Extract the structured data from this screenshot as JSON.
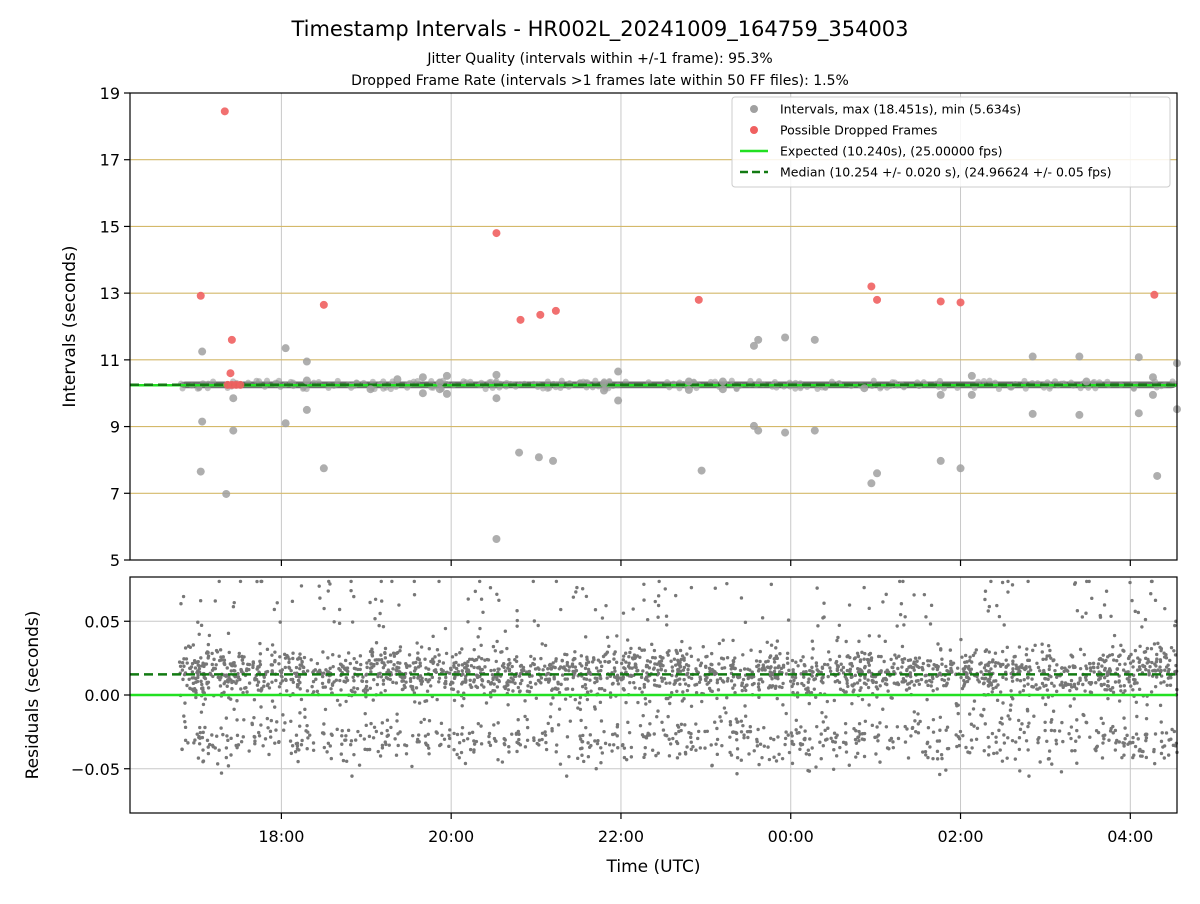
{
  "title": "Timestamp Intervals - HR002L_20241009_164759_354003",
  "subtitle_lines": [
    "Jitter Quality (intervals within +/-1 frame): 95.3%",
    "Dropped Frame Rate (intervals >1 frames late within 50 FF files): 1.5%"
  ],
  "chart_data": [
    {
      "type": "scatter",
      "panel": "top",
      "ylabel": "Intervals (seconds)",
      "xlabel": "",
      "x_unit": "hours UTC (continuous from 09 Oct 00:00; values over 24 wrap to next day)",
      "xlim": [
        "16:13",
        "04:33"
      ],
      "ylim": [
        5,
        19
      ],
      "yticks": [
        "5",
        "7",
        "9",
        "11",
        "13",
        "15",
        "17",
        "19"
      ],
      "y_gridlines": [
        7,
        9,
        11,
        13,
        15,
        17,
        19
      ],
      "y_grid_color": "#d4b96a",
      "x_grid": true,
      "legend_position": "top-right",
      "legend": [
        {
          "label": "Intervals, max (18.451s), min (5.634s)",
          "kind": "marker",
          "color": "#a0a0a0"
        },
        {
          "label": "Possible Dropped Frames",
          "kind": "marker",
          "color": "#f06060"
        },
        {
          "label": "Expected (10.240s), (25.00000 fps)",
          "kind": "line",
          "color": "#22e022"
        },
        {
          "label": "Median (10.254 +/- 0.020 s), (24.96624 +/- 0.05 fps)",
          "kind": "dashed",
          "color": "#127a12"
        }
      ],
      "band": {
        "x_start": "16:48",
        "x_end": "04:33",
        "y_center": 10.25,
        "y_half": 0.1,
        "color": "#6f6f6f"
      },
      "expected_line": {
        "y": 10.24,
        "color": "#22e022"
      },
      "median_line": {
        "y": 10.254,
        "color": "#127a12"
      },
      "series": [
        {
          "name": "Intervals, max (18.451s), min (5.634s)",
          "color": "#a0a0a0",
          "points": [
            {
              "x": "17:04",
              "y": 11.25
            },
            {
              "x": "17:04",
              "y": 9.15
            },
            {
              "x": "17:03",
              "y": 7.65
            },
            {
              "x": "17:21",
              "y": 6.98
            },
            {
              "x": "17:26",
              "y": 9.85
            },
            {
              "x": "17:26",
              "y": 8.88
            },
            {
              "x": "18:03",
              "y": 11.35
            },
            {
              "x": "18:03",
              "y": 9.1
            },
            {
              "x": "18:18",
              "y": 10.95
            },
            {
              "x": "18:18",
              "y": 10.38
            },
            {
              "x": "18:18",
              "y": 9.5
            },
            {
              "x": "18:30",
              "y": 7.75
            },
            {
              "x": "19:03",
              "y": 10.12
            },
            {
              "x": "19:22",
              "y": 10.42
            },
            {
              "x": "19:52",
              "y": 10.32
            },
            {
              "x": "19:52",
              "y": 10.12
            },
            {
              "x": "19:40",
              "y": 10.48
            },
            {
              "x": "19:40",
              "y": 10.0
            },
            {
              "x": "19:57",
              "y": 10.52
            },
            {
              "x": "19:57",
              "y": 9.98
            },
            {
              "x": "20:32",
              "y": 10.55
            },
            {
              "x": "20:32",
              "y": 9.85
            },
            {
              "x": "20:32",
              "y": 5.63
            },
            {
              "x": "20:48",
              "y": 8.22
            },
            {
              "x": "21:02",
              "y": 8.08
            },
            {
              "x": "21:12",
              "y": 7.97
            },
            {
              "x": "21:48",
              "y": 10.3
            },
            {
              "x": "21:48",
              "y": 10.08
            },
            {
              "x": "21:58",
              "y": 10.65
            },
            {
              "x": "21:58",
              "y": 9.78
            },
            {
              "x": "22:48",
              "y": 10.35
            },
            {
              "x": "22:48",
              "y": 10.1
            },
            {
              "x": "22:57",
              "y": 7.68
            },
            {
              "x": "23:12",
              "y": 10.35
            },
            {
              "x": "23:12",
              "y": 10.12
            },
            {
              "x": "23:34",
              "y": 11.42
            },
            {
              "x": "23:34",
              "y": 9.02
            },
            {
              "x": "23:37",
              "y": 11.6
            },
            {
              "x": "23:37",
              "y": 8.88
            },
            {
              "x": "23:56",
              "y": 11.67
            },
            {
              "x": "23:56",
              "y": 8.82
            },
            {
              "x": "24:17",
              "y": 11.6
            },
            {
              "x": "24:17",
              "y": 8.88
            },
            {
              "x": "24:52",
              "y": 10.15
            },
            {
              "x": "24:57",
              "y": 7.3
            },
            {
              "x": "25:01",
              "y": 7.6
            },
            {
              "x": "25:46",
              "y": 9.95
            },
            {
              "x": "25:46",
              "y": 7.97
            },
            {
              "x": "26:00",
              "y": 7.75
            },
            {
              "x": "26:08",
              "y": 10.52
            },
            {
              "x": "26:08",
              "y": 9.95
            },
            {
              "x": "26:51",
              "y": 11.1
            },
            {
              "x": "26:51",
              "y": 9.38
            },
            {
              "x": "27:24",
              "y": 11.1
            },
            {
              "x": "27:24",
              "y": 9.35
            },
            {
              "x": "27:29",
              "y": 10.35
            },
            {
              "x": "28:06",
              "y": 11.08
            },
            {
              "x": "28:06",
              "y": 9.4
            },
            {
              "x": "28:16",
              "y": 10.48
            },
            {
              "x": "28:16",
              "y": 9.95
            },
            {
              "x": "28:19",
              "y": 7.52
            },
            {
              "x": "28:33",
              "y": 10.9
            },
            {
              "x": "28:33",
              "y": 9.52
            }
          ]
        },
        {
          "name": "Possible Dropped Frames",
          "color": "#f06060",
          "points": [
            {
              "x": "17:03",
              "y": 12.92
            },
            {
              "x": "17:20",
              "y": 18.45
            },
            {
              "x": "17:25",
              "y": 11.6
            },
            {
              "x": "17:24",
              "y": 10.6
            },
            {
              "x": "17:22",
              "y": 10.25
            },
            {
              "x": "17:25",
              "y": 10.25
            },
            {
              "x": "17:28",
              "y": 10.25
            },
            {
              "x": "17:31",
              "y": 10.25
            },
            {
              "x": "18:30",
              "y": 12.65
            },
            {
              "x": "20:32",
              "y": 14.8
            },
            {
              "x": "20:49",
              "y": 12.2
            },
            {
              "x": "21:03",
              "y": 12.35
            },
            {
              "x": "21:14",
              "y": 12.47
            },
            {
              "x": "22:55",
              "y": 12.8
            },
            {
              "x": "24:57",
              "y": 13.2
            },
            {
              "x": "25:01",
              "y": 12.8
            },
            {
              "x": "25:46",
              "y": 12.75
            },
            {
              "x": "26:00",
              "y": 12.72
            },
            {
              "x": "28:17",
              "y": 12.95
            }
          ]
        }
      ]
    },
    {
      "type": "scatter",
      "panel": "bottom",
      "ylabel": "Residuals (seconds)",
      "xlabel": "Time (UTC)",
      "xlim": [
        "16:13",
        "04:33"
      ],
      "ylim": [
        -0.08,
        0.08
      ],
      "yticks": [
        "−0.05",
        "0.00",
        "0.05"
      ],
      "ytick_values": [
        -0.05,
        0.0,
        0.05
      ],
      "xticks": [
        "18:00",
        "20:00",
        "22:00",
        "00:00",
        "02:00",
        "04:00"
      ],
      "xtick_hours": [
        18,
        20,
        22,
        24,
        26,
        28
      ],
      "grid": true,
      "point_color": "#777777",
      "x_range_points": [
        "16:48",
        "04:33"
      ],
      "residual_distribution": {
        "main_cluster_center": 0.015,
        "main_cluster_spread": 0.009,
        "lower_cluster_center": -0.03,
        "lower_cluster_spread": 0.009,
        "outlier_min": -0.055,
        "outlier_max": 0.077
      },
      "expected_line": {
        "y": 0.0,
        "color": "#22e022"
      },
      "median_line": {
        "y": 0.014,
        "color": "#127a12"
      }
    }
  ]
}
